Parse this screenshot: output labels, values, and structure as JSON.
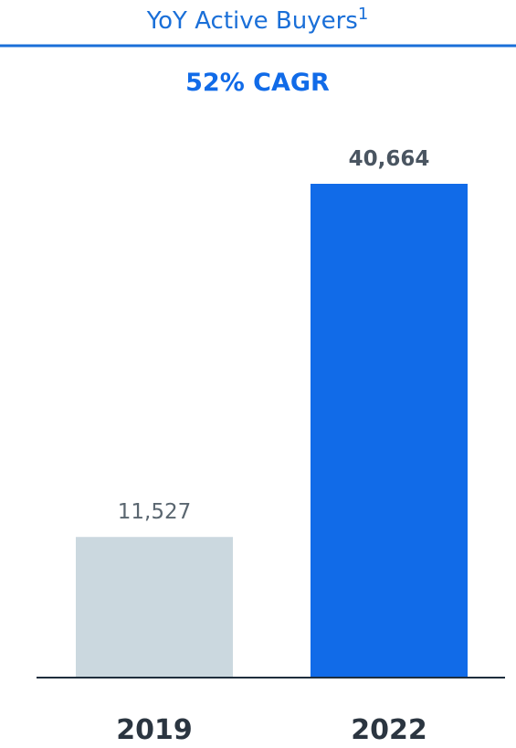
{
  "chart_data": {
    "type": "bar",
    "title": "YoY Active Buyers",
    "title_superscript": "1",
    "subtitle": "52% CAGR",
    "categories": [
      "2019",
      "2022"
    ],
    "values": [
      11527,
      40664
    ],
    "data_labels": [
      "11,527",
      "40,664"
    ],
    "data_label_bold": [
      false,
      true
    ],
    "bar_colors": [
      "#cbd8df",
      "#116be8"
    ],
    "label_colors": [
      "#5a6670",
      "#4a5561"
    ],
    "ylim": [
      0,
      40664
    ],
    "grid": false,
    "legend": "none"
  },
  "colors": {
    "accent": "#116be8",
    "title": "#1a6fd8",
    "rule": "#1a6fd8",
    "axis": "#1f2e3d",
    "tick_label": "#2b3540"
  }
}
